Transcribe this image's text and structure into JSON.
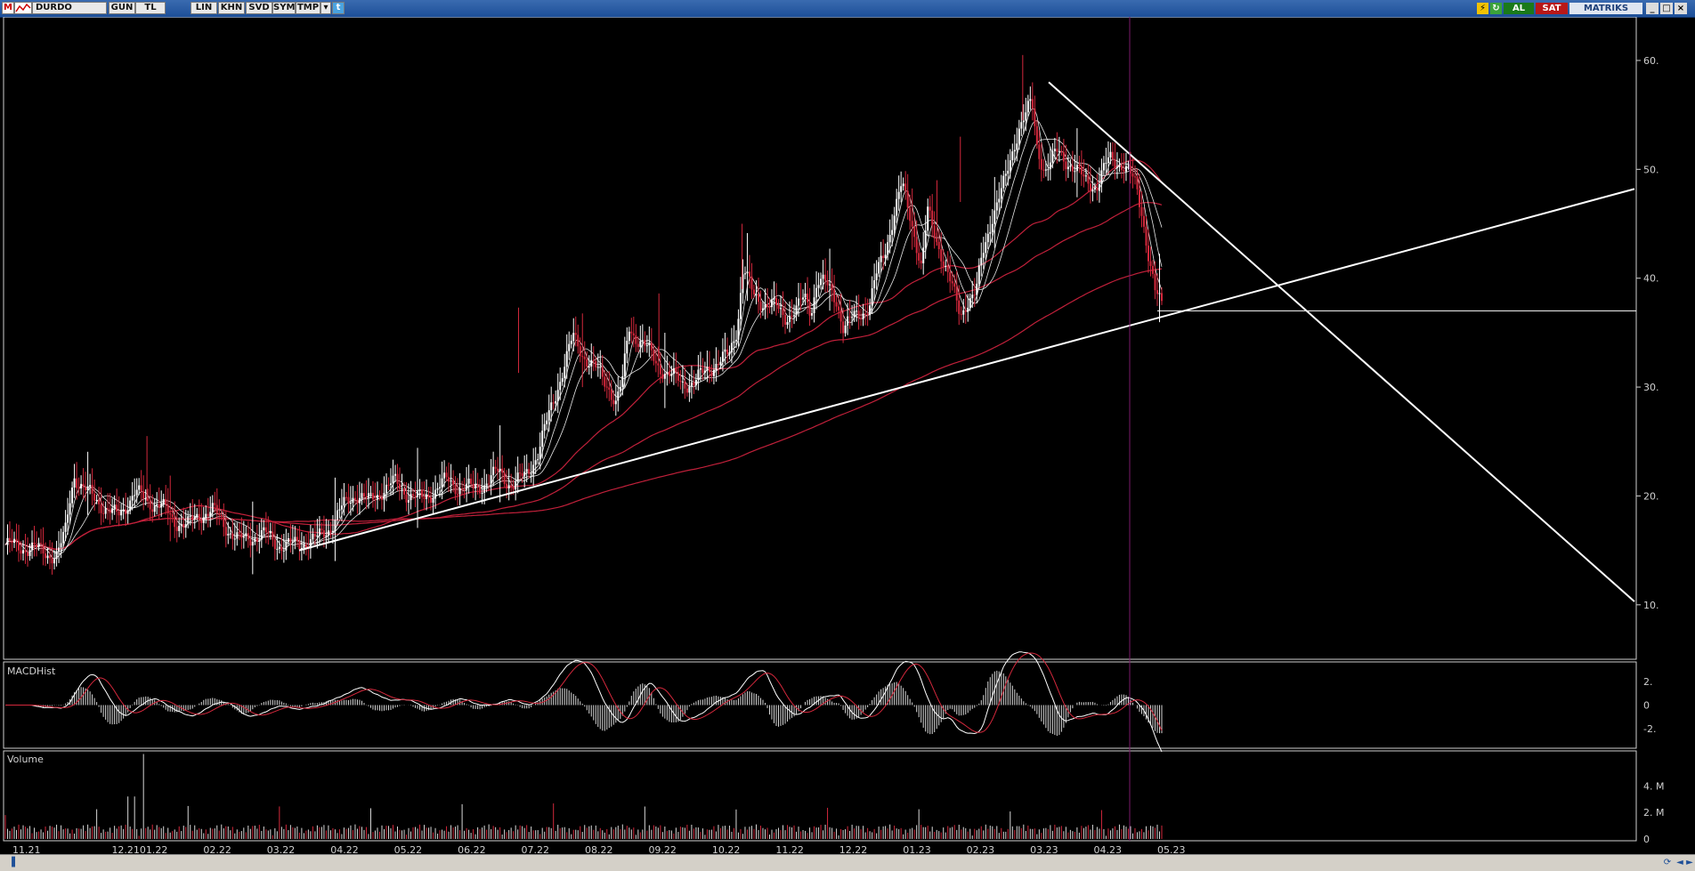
{
  "toolbar": {
    "logo_letter": "M",
    "symbol": "DURDO",
    "period": "GUN",
    "currency": "TL",
    "buttons": [
      "LIN",
      "KHN",
      "SVD",
      "SYM",
      "TMP"
    ],
    "dropdown_glyph": "▾",
    "twitter_glyph": "t",
    "buy_label": "AL",
    "sell_label": "SAT",
    "brand": "MATRIKS",
    "window_controls": [
      "_",
      "□",
      "×"
    ]
  },
  "colors": {
    "background": "#000000",
    "candle_up": "#ffffff",
    "candle_down": "#d4283c",
    "ma_short": "#e8e8e8",
    "ma_long": "#c0203a",
    "trendline": "#ffffff",
    "cursor_line": "#7a1a6a",
    "axis_text": "#d0d0d0",
    "toolbar_bg": "#1d4f98",
    "buy_bg": "#1a7a1a",
    "sell_bg": "#b81818"
  },
  "chart_data": [
    {
      "type": "line",
      "panel": "price",
      "x_ticks": [
        "11.21",
        "12.21",
        "01.22",
        "02.22",
        "03.22",
        "04.22",
        "05.22",
        "06.22",
        "07.22",
        "08.22",
        "09.22",
        "10.22",
        "11.22",
        "12.22",
        "01.23",
        "02.23",
        "03.23",
        "04.23",
        "05.23"
      ],
      "y_ticks": [
        "10.",
        "20.",
        "30.",
        "40.",
        "50.",
        "60."
      ],
      "ylim": [
        5,
        64
      ],
      "price_close": [
        [
          0,
          15.5
        ],
        [
          2,
          15.2
        ],
        [
          4,
          14.5
        ],
        [
          4.6,
          16.5
        ],
        [
          5,
          20
        ],
        [
          5.3,
          22
        ],
        [
          6,
          20.5
        ],
        [
          7,
          19.8
        ],
        [
          8,
          18.4
        ],
        [
          8.6,
          18.2
        ],
        [
          9,
          18.8
        ],
        [
          10,
          20.2
        ],
        [
          11,
          19.6
        ],
        [
          12,
          19.0
        ],
        [
          13,
          17.8
        ],
        [
          14,
          17.2
        ],
        [
          15,
          18.4
        ],
        [
          16,
          18.6
        ],
        [
          17,
          17.2
        ],
        [
          18,
          15.8
        ],
        [
          19,
          16.3
        ],
        [
          20,
          16.4
        ],
        [
          21,
          15.6
        ],
        [
          22,
          15.4
        ],
        [
          23,
          15.8
        ],
        [
          24,
          16.0
        ],
        [
          25,
          17.2
        ],
        [
          26,
          19.0
        ],
        [
          27,
          20.3
        ],
        [
          28,
          19.4
        ],
        [
          29,
          20.6
        ],
        [
          30,
          21.2
        ],
        [
          31,
          20.2
        ],
        [
          32,
          19.6
        ],
        [
          33,
          20.5
        ],
        [
          34,
          21.4
        ],
        [
          35,
          20.8
        ],
        [
          36,
          20.6
        ],
        [
          37,
          21.3
        ],
        [
          38,
          22.2
        ],
        [
          39,
          21.0
        ],
        [
          40,
          21.8
        ],
        [
          41,
          24.0
        ],
        [
          42,
          28.0
        ],
        [
          43,
          32.0
        ],
        [
          43.7,
          34.5
        ],
        [
          44.5,
          33
        ],
        [
          45.5,
          31.5
        ],
        [
          46.5,
          30.0
        ],
        [
          47,
          28.5
        ],
        [
          47.5,
          30.5
        ],
        [
          48,
          35.5
        ],
        [
          49,
          34.0
        ],
        [
          50,
          32.5
        ],
        [
          51,
          31.0
        ],
        [
          52,
          30.6
        ],
        [
          53,
          30.2
        ],
        [
          54,
          31.8
        ],
        [
          55,
          32.2
        ],
        [
          55.7,
          33.0
        ],
        [
          56.3,
          35.5
        ],
        [
          56.8,
          41.0
        ],
        [
          57.5,
          38.5
        ],
        [
          58,
          38.0
        ],
        [
          59,
          37.5
        ],
        [
          60,
          36.5
        ],
        [
          61,
          37.2
        ],
        [
          61.5,
          38.2
        ],
        [
          62,
          37.0
        ],
        [
          62.5,
          40.0
        ],
        [
          63,
          39.5
        ],
        [
          64,
          38.0
        ],
        [
          64.5,
          35.5
        ],
        [
          65,
          36.0
        ],
        [
          66,
          37.0
        ],
        [
          66.5,
          37.5
        ],
        [
          67,
          40.0
        ],
        [
          67.7,
          42.5
        ],
        [
          68,
          44.0
        ],
        [
          68.5,
          46.5
        ],
        [
          69,
          48.5
        ],
        [
          70,
          44.0
        ],
        [
          70.5,
          41.0
        ],
        [
          71,
          46.0
        ],
        [
          71.5,
          44.0
        ],
        [
          72,
          42.5
        ],
        [
          72.5,
          40.5
        ],
        [
          73,
          38.5
        ],
        [
          73.5,
          36.5
        ],
        [
          74,
          38.0
        ],
        [
          74.7,
          38.6
        ],
        [
          75.2,
          42.0
        ],
        [
          76,
          46.0
        ],
        [
          77,
          49.0
        ],
        [
          78,
          54.0
        ],
        [
          79,
          56.0
        ],
        [
          79.4,
          52.0
        ],
        [
          80,
          50.0
        ],
        [
          81,
          51.5
        ],
        [
          82,
          50.5
        ],
        [
          83,
          49.0
        ],
        [
          84,
          48.5
        ],
        [
          85,
          51.0
        ],
        [
          86,
          50.5
        ],
        [
          87,
          48.5
        ],
        [
          87.5,
          46.0
        ],
        [
          88,
          42.0
        ],
        [
          88.5,
          38.5
        ],
        [
          89,
          37.5
        ]
      ],
      "high_low_range_samples": {
        "low": 14.0,
        "high": 60.5
      },
      "series": [
        {
          "name": "",
          "values_note": "short moving averages (3)"
        },
        {
          "name": "",
          "values_note": "long moving averages (3)"
        }
      ],
      "annotations": {
        "support_trendline": {
          "from": [
            "03.22",
            15.0
          ],
          "to": [
            "end",
            48.2
          ]
        },
        "resistance_trendline": {
          "from": [
            "03.23",
            58.0
          ],
          "to": [
            "end",
            10.3
          ]
        },
        "horizontal_level": 37.0,
        "cursor_date": "04.23"
      }
    },
    {
      "type": "line",
      "panel": "MACDHist",
      "title": "MACDHist",
      "y_ticks": [
        "2.",
        "0",
        "-2."
      ],
      "ylim": [
        -3.5,
        3.5
      ]
    },
    {
      "type": "bar",
      "panel": "Volume",
      "title": "Volume",
      "y_ticks": [
        "0",
        "2. M",
        "4. M"
      ],
      "ylim": [
        0,
        6.5
      ]
    }
  ],
  "statusbar": {
    "refresh_glyph": "⟳",
    "nav_glyphs": [
      "◄",
      "►"
    ]
  }
}
